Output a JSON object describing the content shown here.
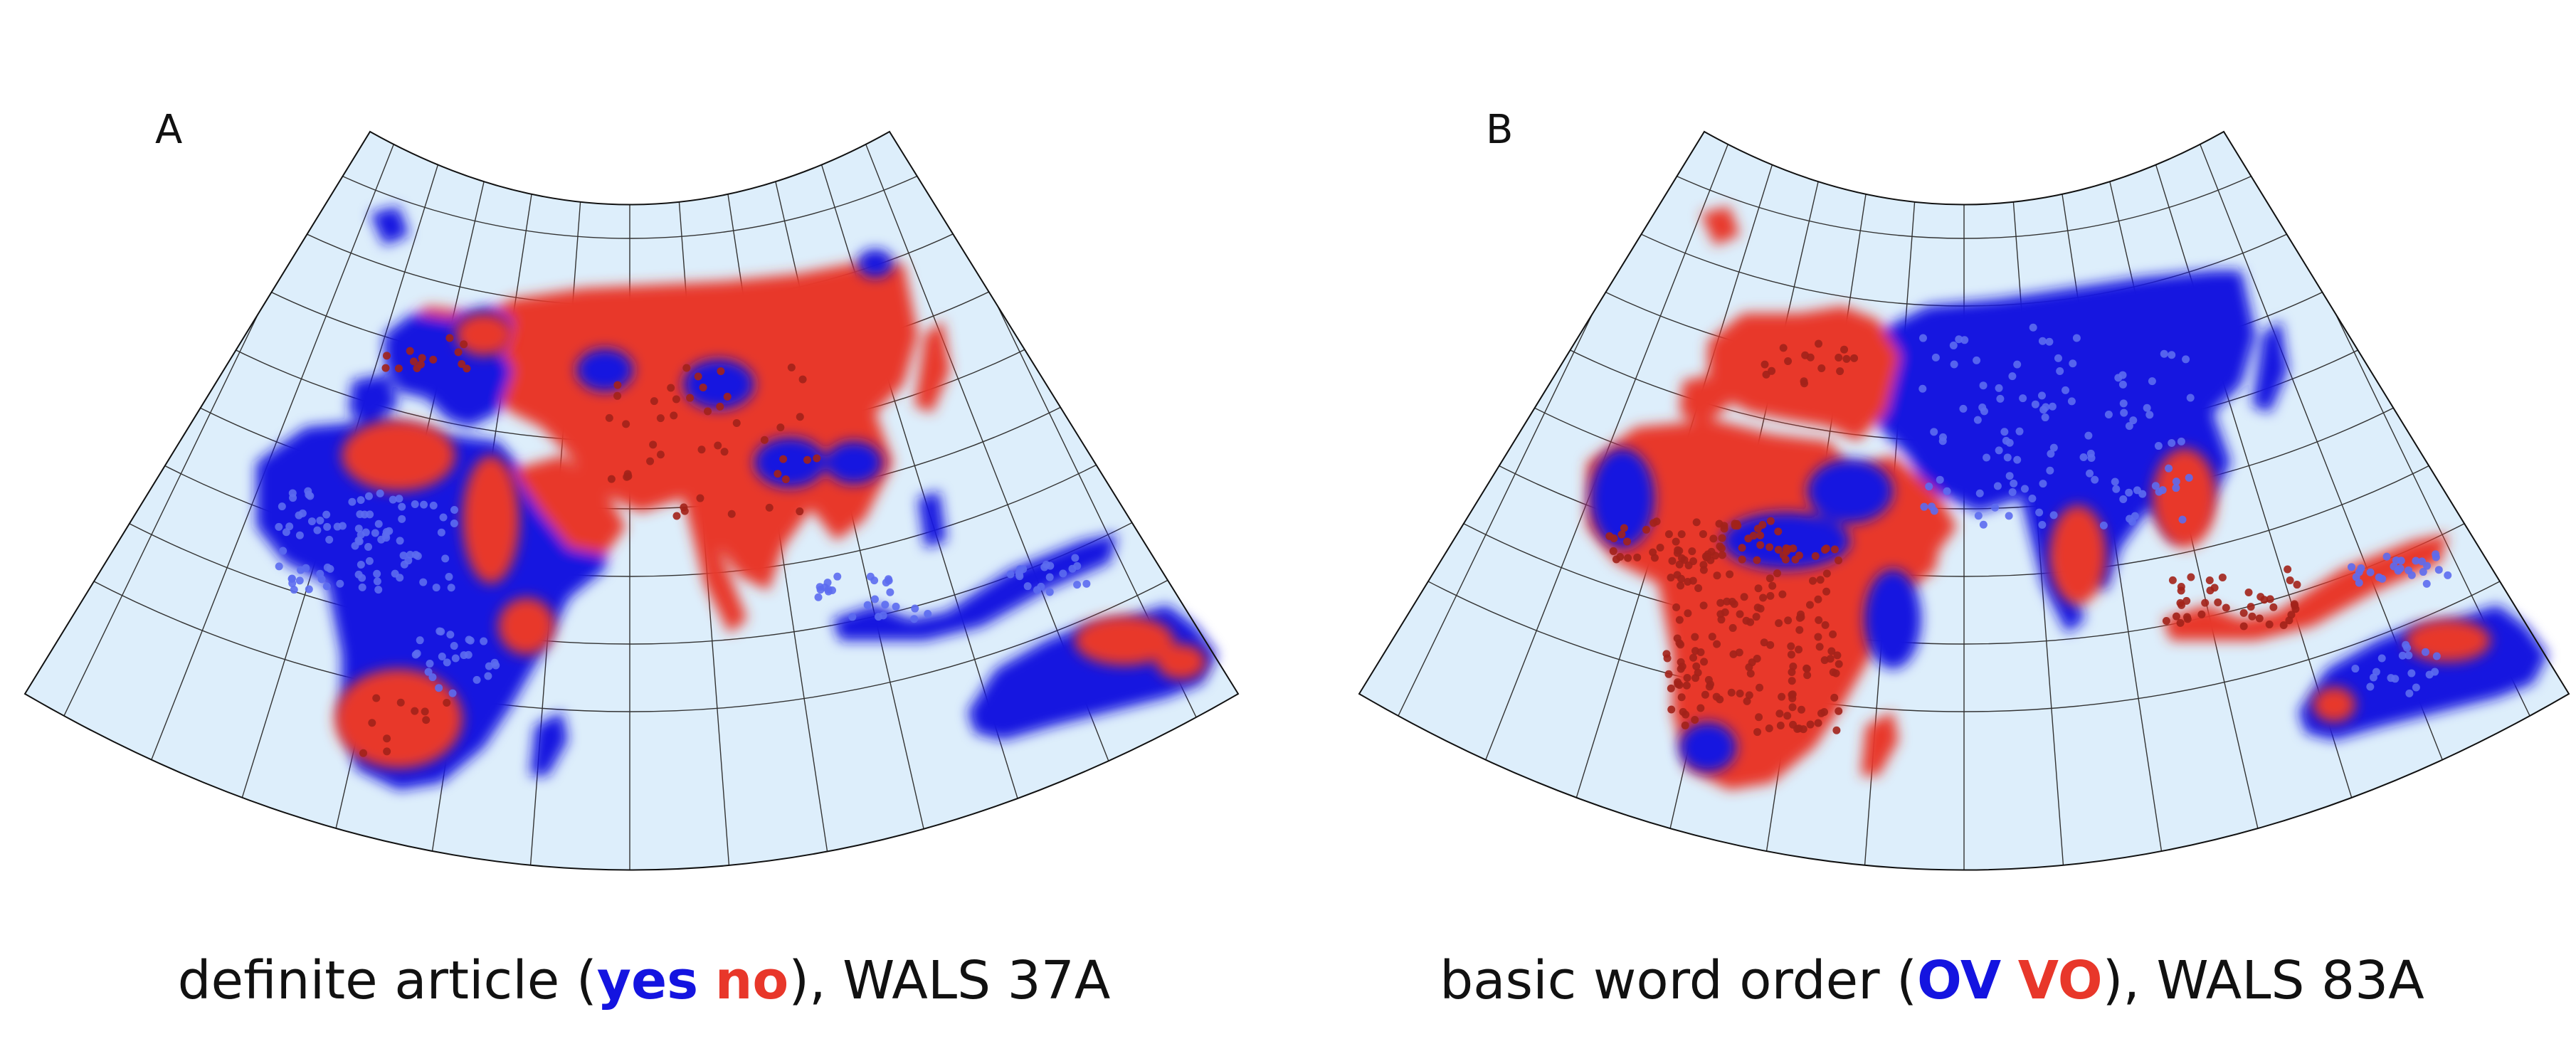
{
  "colors": {
    "ocean": "#ddeefb",
    "graticule": "#333333",
    "coastline": "#111111",
    "value_1": "#1414e0",
    "value_2": "#e8372a",
    "dot_value_1": "#5c6bf0",
    "dot_value_2": "#a2221a"
  },
  "panels": [
    {
      "letter": "A",
      "caption_prefix": "definite article (",
      "key_1": "yes",
      "key_2": "no",
      "caption_suffix": "), WALS 37A",
      "legend": [
        {
          "label": "yes",
          "color": "#1414e0"
        },
        {
          "label": "no",
          "color": "#e8372a"
        }
      ]
    },
    {
      "letter": "B",
      "caption_prefix": "basic word order (",
      "key_1": "OV",
      "key_2": "VO",
      "caption_suffix": "), WALS 83A",
      "legend": [
        {
          "label": "OV",
          "color": "#1414e0"
        },
        {
          "label": "VO",
          "color": "#e8372a"
        }
      ]
    }
  ]
}
